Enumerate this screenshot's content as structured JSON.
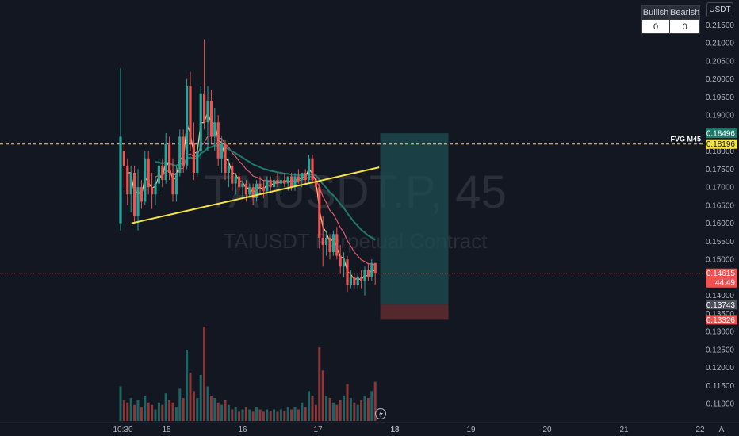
{
  "colors": {
    "background": "#131722",
    "up": "#26a69a",
    "down": "#ef5350",
    "fvg_line": "#f5e442",
    "trend_line": "#f5e442",
    "ema_fast": "#f3d58c",
    "ema_slow": "#e0596a",
    "ema_long": "#1f7a6d",
    "target_zone": "#1d4f52",
    "stop_zone": "#5c2a2e",
    "price_line": "#ef5350"
  },
  "watermark": {
    "symbol": "TAIUSDT.P, 45",
    "description": "TAIUSDT Perpetual Contract"
  },
  "currency_button": "USDT",
  "auto_button": "A",
  "signal_table": {
    "bullish_label": "Bullish",
    "bearish_label": "Bearish",
    "bullish_value": "0",
    "bearish_value": "0"
  },
  "chart_data": {
    "type": "candlestick",
    "price_axis": {
      "min": 0.105,
      "max": 0.2175,
      "ticks": [
        "0.21500",
        "0.21000",
        "0.20500",
        "0.20000",
        "0.19500",
        "0.19000",
        "0.18500",
        "0.18000",
        "0.17500",
        "0.17000",
        "0.16500",
        "0.16000",
        "0.15500",
        "0.15000",
        "0.14500",
        "0.14000",
        "0.13500",
        "0.13000",
        "0.12500",
        "0.12000",
        "0.11500",
        "0.11000"
      ]
    },
    "time_axis": {
      "start_label": "10:30",
      "labels": [
        "10:30",
        "15",
        "16",
        "17",
        "18",
        "19",
        "20",
        "21",
        "22"
      ],
      "bold_label": "18"
    },
    "bar_interval": "45 min",
    "candles_ohlc": [
      [
        0.16,
        0.203,
        0.158,
        0.184
      ],
      [
        0.18,
        0.182,
        0.17,
        0.176
      ],
      [
        0.176,
        0.178,
        0.165,
        0.168
      ],
      [
        0.168,
        0.176,
        0.163,
        0.174
      ],
      [
        0.174,
        0.176,
        0.16,
        0.162
      ],
      [
        0.162,
        0.175,
        0.158,
        0.17
      ],
      [
        0.17,
        0.172,
        0.164,
        0.166
      ],
      [
        0.166,
        0.18,
        0.165,
        0.178
      ],
      [
        0.178,
        0.18,
        0.168,
        0.17
      ],
      [
        0.17,
        0.174,
        0.164,
        0.168
      ],
      [
        0.168,
        0.173,
        0.165,
        0.171
      ],
      [
        0.171,
        0.178,
        0.169,
        0.176
      ],
      [
        0.176,
        0.178,
        0.17,
        0.172
      ],
      [
        0.172,
        0.185,
        0.171,
        0.182
      ],
      [
        0.182,
        0.184,
        0.172,
        0.174
      ],
      [
        0.174,
        0.178,
        0.166,
        0.168
      ],
      [
        0.168,
        0.176,
        0.166,
        0.174
      ],
      [
        0.174,
        0.186,
        0.173,
        0.184
      ],
      [
        0.184,
        0.186,
        0.174,
        0.176
      ],
      [
        0.176,
        0.2,
        0.175,
        0.198
      ],
      [
        0.198,
        0.202,
        0.18,
        0.182
      ],
      [
        0.182,
        0.188,
        0.172,
        0.174
      ],
      [
        0.174,
        0.182,
        0.173,
        0.18
      ],
      [
        0.18,
        0.198,
        0.178,
        0.196
      ],
      [
        0.196,
        0.211,
        0.186,
        0.188
      ],
      [
        0.188,
        0.198,
        0.18,
        0.194
      ],
      [
        0.194,
        0.197,
        0.182,
        0.184
      ],
      [
        0.184,
        0.192,
        0.18,
        0.188
      ],
      [
        0.188,
        0.19,
        0.176,
        0.178
      ],
      [
        0.178,
        0.184,
        0.174,
        0.182
      ],
      [
        0.182,
        0.183,
        0.172,
        0.174
      ],
      [
        0.174,
        0.178,
        0.17,
        0.176
      ],
      [
        0.176,
        0.177,
        0.169,
        0.171
      ],
      [
        0.171,
        0.174,
        0.168,
        0.173
      ],
      [
        0.173,
        0.174,
        0.168,
        0.17
      ],
      [
        0.17,
        0.172,
        0.167,
        0.171
      ],
      [
        0.171,
        0.172,
        0.166,
        0.168
      ],
      [
        0.168,
        0.171,
        0.167,
        0.17
      ],
      [
        0.17,
        0.171,
        0.165,
        0.167
      ],
      [
        0.167,
        0.172,
        0.166,
        0.171
      ],
      [
        0.171,
        0.173,
        0.168,
        0.17
      ],
      [
        0.17,
        0.172,
        0.167,
        0.169
      ],
      [
        0.169,
        0.173,
        0.168,
        0.172
      ],
      [
        0.172,
        0.173,
        0.169,
        0.17
      ],
      [
        0.17,
        0.173,
        0.169,
        0.172
      ],
      [
        0.172,
        0.174,
        0.17,
        0.171
      ],
      [
        0.171,
        0.173,
        0.168,
        0.172
      ],
      [
        0.172,
        0.174,
        0.17,
        0.171
      ],
      [
        0.171,
        0.173,
        0.169,
        0.173
      ],
      [
        0.173,
        0.174,
        0.169,
        0.17
      ],
      [
        0.17,
        0.174,
        0.169,
        0.173
      ],
      [
        0.173,
        0.175,
        0.171,
        0.172
      ],
      [
        0.172,
        0.174,
        0.17,
        0.174
      ],
      [
        0.174,
        0.175,
        0.171,
        0.172
      ],
      [
        0.172,
        0.179,
        0.171,
        0.178
      ],
      [
        0.178,
        0.179,
        0.171,
        0.172
      ],
      [
        0.172,
        0.173,
        0.168,
        0.17
      ],
      [
        0.17,
        0.171,
        0.153,
        0.156
      ],
      [
        0.156,
        0.162,
        0.148,
        0.154
      ],
      [
        0.154,
        0.158,
        0.151,
        0.156
      ],
      [
        0.156,
        0.157,
        0.15,
        0.152
      ],
      [
        0.152,
        0.158,
        0.151,
        0.157
      ],
      [
        0.157,
        0.159,
        0.15,
        0.151
      ],
      [
        0.151,
        0.154,
        0.146,
        0.148
      ],
      [
        0.148,
        0.152,
        0.145,
        0.15
      ],
      [
        0.15,
        0.151,
        0.141,
        0.143
      ],
      [
        0.143,
        0.147,
        0.142,
        0.145
      ],
      [
        0.145,
        0.146,
        0.142,
        0.143
      ],
      [
        0.143,
        0.146,
        0.142,
        0.145
      ],
      [
        0.145,
        0.147,
        0.142,
        0.144
      ],
      [
        0.144,
        0.148,
        0.14,
        0.147
      ],
      [
        0.147,
        0.149,
        0.144,
        0.145
      ],
      [
        0.145,
        0.15,
        0.144,
        0.149
      ],
      [
        0.149,
        0.149,
        0.143,
        0.14615
      ]
    ],
    "volume": [
      0.3,
      0.18,
      0.16,
      0.2,
      0.14,
      0.18,
      0.12,
      0.22,
      0.16,
      0.14,
      0.1,
      0.16,
      0.14,
      0.24,
      0.18,
      0.16,
      0.12,
      0.28,
      0.2,
      0.62,
      0.42,
      0.26,
      0.2,
      0.4,
      0.82,
      0.3,
      0.22,
      0.2,
      0.16,
      0.14,
      0.18,
      0.14,
      0.1,
      0.12,
      0.08,
      0.1,
      0.12,
      0.1,
      0.08,
      0.12,
      0.1,
      0.08,
      0.1,
      0.09,
      0.1,
      0.08,
      0.1,
      0.09,
      0.12,
      0.1,
      0.12,
      0.1,
      0.16,
      0.12,
      0.26,
      0.22,
      0.14,
      0.64,
      0.44,
      0.22,
      0.2,
      0.16,
      0.14,
      0.18,
      0.22,
      0.32,
      0.2,
      0.16,
      0.14,
      0.18,
      0.22,
      0.2,
      0.26,
      0.34
    ],
    "fvg_level": {
      "label": "FVG M45",
      "price": 0.18196,
      "price_label": "0.18196"
    },
    "last_price": {
      "price": 0.14615,
      "price_label": "0.14615",
      "countdown": "44:49"
    },
    "position_tool": {
      "target": 0.18496,
      "target_label": "0.18496",
      "entry": 0.13743,
      "entry_label": "0.13743",
      "stop": 0.13326,
      "stop_label": "0.13326",
      "start_bar": 74,
      "end_bar": 94
    },
    "trendline": {
      "start_bar": 2,
      "start_price": 0.16,
      "end_bar": 73,
      "end_price": 0.1755
    },
    "grid": false,
    "legend": "none"
  }
}
